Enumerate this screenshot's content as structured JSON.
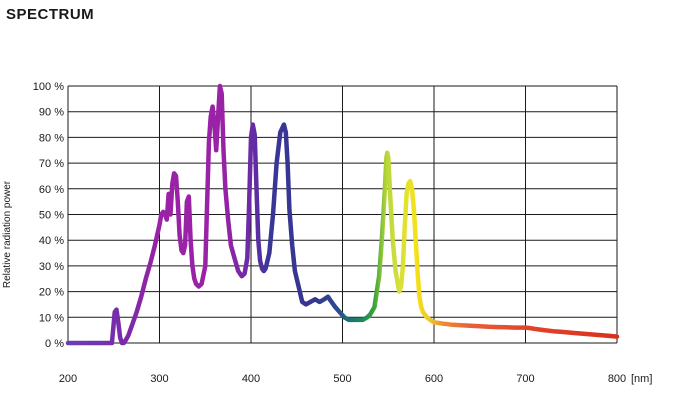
{
  "title": "SPECTRUM",
  "chart_data": {
    "type": "line",
    "title": "SPECTRUM",
    "xlabel": "",
    "ylabel": "Relative radiation power",
    "x_unit": "[nm]",
    "xlim": [
      200,
      800
    ],
    "ylim": [
      0,
      100
    ],
    "x_ticks": [
      200,
      300,
      400,
      500,
      600,
      700,
      800
    ],
    "x_tick_labels": [
      "200",
      "300",
      "400",
      "500",
      "600",
      "700",
      "800"
    ],
    "y_ticks": [
      0,
      10,
      20,
      30,
      40,
      50,
      60,
      70,
      80,
      90,
      100
    ],
    "y_tick_labels": [
      "0 %",
      "10 %",
      "20 %",
      "30 %",
      "40 %",
      "50 %",
      "60 %",
      "70 %",
      "80 %",
      "90 %",
      "100 %"
    ],
    "grid": true,
    "legend": "none",
    "series": [
      {
        "x": [
          200,
          248,
          250,
          251,
          253,
          255,
          257,
          259,
          261,
          263,
          266,
          270,
          275,
          280,
          285,
          290,
          295,
          300,
          302,
          304,
          306,
          308,
          310,
          312,
          314,
          316,
          318,
          320,
          322,
          324,
          326,
          328,
          330,
          332,
          334,
          336,
          338,
          340,
          343,
          346,
          350,
          354,
          356,
          358,
          360,
          362,
          364,
          366,
          368,
          370,
          372,
          375,
          378,
          382,
          386,
          390,
          393,
          396,
          398,
          400,
          402,
          404,
          406,
          408,
          410,
          412,
          414,
          416,
          420,
          424,
          428,
          432,
          436,
          438,
          440,
          442,
          445,
          448,
          452,
          456,
          460,
          465,
          470,
          475,
          480,
          484,
          486,
          488,
          492,
          497,
          502,
          507,
          512,
          517,
          522,
          527,
          530,
          535,
          540,
          543,
          546,
          548,
          549,
          550,
          552,
          555,
          558,
          560,
          562,
          564,
          566,
          568,
          570,
          572,
          574,
          576,
          578,
          580,
          582,
          584,
          586,
          588,
          590,
          592,
          594,
          596,
          598,
          600,
          605,
          610,
          615,
          620,
          625,
          630,
          635,
          640,
          650,
          660,
          670,
          680,
          690,
          700,
          705,
          710,
          720,
          730,
          740,
          750,
          760,
          770,
          780,
          790,
          800
        ],
        "y": [
          0,
          0,
          8,
          12,
          13,
          8,
          2,
          0,
          0,
          1,
          3,
          7,
          12,
          18,
          25,
          31,
          38,
          46,
          50,
          51,
          50,
          48,
          58,
          50,
          62,
          66,
          65,
          55,
          42,
          36,
          35,
          38,
          55,
          57,
          40,
          30,
          25,
          23,
          22,
          23,
          30,
          78,
          88,
          92,
          85,
          75,
          88,
          100,
          97,
          75,
          60,
          48,
          38,
          33,
          28,
          26,
          27,
          33,
          55,
          80,
          85,
          81,
          60,
          40,
          32,
          29,
          28,
          29,
          35,
          50,
          70,
          82,
          85,
          82,
          70,
          52,
          38,
          28,
          22,
          16,
          15,
          16,
          17,
          16,
          17,
          18,
          17,
          16,
          14,
          12,
          10,
          9,
          9,
          9,
          9,
          10,
          11,
          14,
          26,
          40,
          58,
          72,
          74,
          72,
          58,
          40,
          28,
          24,
          20,
          22,
          30,
          45,
          58,
          62,
          63,
          60,
          52,
          40,
          28,
          18,
          14,
          12,
          11,
          10,
          9.5,
          9,
          8.5,
          8,
          7.8,
          7.5,
          7.3,
          7.1,
          7,
          6.9,
          6.8,
          6.7,
          6.5,
          6.3,
          6.2,
          6.1,
          6,
          6,
          5.8,
          5.5,
          5,
          4.6,
          4.3,
          4.0,
          3.7,
          3.4,
          3.1,
          2.8,
          2.5
        ]
      }
    ],
    "colors": {
      "gradient": [
        {
          "nm": 200,
          "color": "#6a3fb5"
        },
        {
          "nm": 262,
          "color": "#7a2aa8"
        },
        {
          "nm": 300,
          "color": "#9a22a6"
        },
        {
          "nm": 370,
          "color": "#9a22a6"
        },
        {
          "nm": 400,
          "color": "#6a2ba6"
        },
        {
          "nm": 420,
          "color": "#3a3697"
        },
        {
          "nm": 470,
          "color": "#35368f"
        },
        {
          "nm": 495,
          "color": "#2e4a8f"
        },
        {
          "nm": 505,
          "color": "#1e6e74"
        },
        {
          "nm": 522,
          "color": "#1b8a5e"
        },
        {
          "nm": 535,
          "color": "#3aa53a"
        },
        {
          "nm": 548,
          "color": "#b9d63a"
        },
        {
          "nm": 562,
          "color": "#d7e03a"
        },
        {
          "nm": 580,
          "color": "#f4e21a"
        },
        {
          "nm": 595,
          "color": "#f0c82a"
        },
        {
          "nm": 610,
          "color": "#ec8c34"
        },
        {
          "nm": 640,
          "color": "#e8603a"
        },
        {
          "nm": 700,
          "color": "#e2452a"
        },
        {
          "nm": 800,
          "color": "#d8301e"
        }
      ],
      "grid": "#1a1a1a"
    }
  }
}
